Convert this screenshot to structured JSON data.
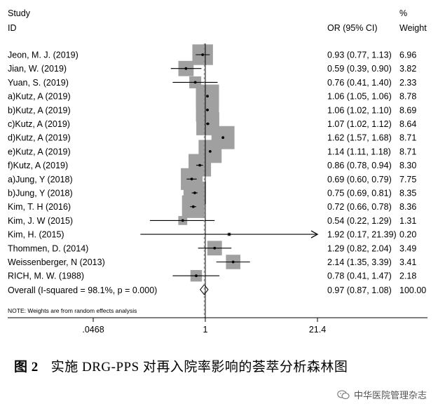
{
  "chart_data": {
    "type": "forest",
    "headers": {
      "study": "Study",
      "id": "ID",
      "ci": "OR (95% CI)",
      "weight_pct": "%",
      "weight": "Weight"
    },
    "x_scale": "log",
    "reference_value": 1,
    "x_ticks": [
      {
        "value": 0.0468,
        "label": ".0468"
      },
      {
        "value": 1,
        "label": "1"
      },
      {
        "value": 21.4,
        "label": "21.4"
      }
    ],
    "studies": [
      {
        "label": "Jeon, M. J. (2019)",
        "or": 0.93,
        "lo": 0.77,
        "hi": 1.13,
        "ci_text": "0.93 (0.77, 1.13)",
        "weight": 6.96,
        "weight_text": "6.96"
      },
      {
        "label": "Jian, W. (2019)",
        "or": 0.59,
        "lo": 0.39,
        "hi": 0.9,
        "ci_text": "0.59 (0.39, 0.90)",
        "weight": 3.82,
        "weight_text": "3.82"
      },
      {
        "label": "Yuan, S. (2019)",
        "or": 0.76,
        "lo": 0.41,
        "hi": 1.4,
        "ci_text": "0.76 (0.41, 1.40)",
        "weight": 2.33,
        "weight_text": "2.33"
      },
      {
        "label": "a)Kutz, A (2019)",
        "or": 1.06,
        "lo": 1.05,
        "hi": 1.06,
        "ci_text": "1.06 (1.05, 1.06)",
        "weight": 8.78,
        "weight_text": "8.78"
      },
      {
        "label": "b)Kutz, A (2019)",
        "or": 1.06,
        "lo": 1.02,
        "hi": 1.1,
        "ci_text": "1.06 (1.02, 1.10)",
        "weight": 8.69,
        "weight_text": "8.69"
      },
      {
        "label": "c)Kutz, A (2019)",
        "or": 1.07,
        "lo": 1.02,
        "hi": 1.12,
        "ci_text": "1.07 (1.02, 1.12)",
        "weight": 8.64,
        "weight_text": "8.64"
      },
      {
        "label": "d)Kutz, A (2019)",
        "or": 1.62,
        "lo": 1.57,
        "hi": 1.68,
        "ci_text": "1.62 (1.57, 1.68)",
        "weight": 8.71,
        "weight_text": "8.71"
      },
      {
        "label": "e)Kutz, A (2019)",
        "or": 1.14,
        "lo": 1.11,
        "hi": 1.18,
        "ci_text": "1.14 (1.11, 1.18)",
        "weight": 8.71,
        "weight_text": "8.71"
      },
      {
        "label": "f)Kutz, A (2019)",
        "or": 0.86,
        "lo": 0.78,
        "hi": 0.94,
        "ci_text": "0.86 (0.78, 0.94)",
        "weight": 8.3,
        "weight_text": "8.30"
      },
      {
        "label": "a)Jung, Y (2018)",
        "or": 0.69,
        "lo": 0.6,
        "hi": 0.79,
        "ci_text": "0.69 (0.60, 0.79)",
        "weight": 7.75,
        "weight_text": "7.75"
      },
      {
        "label": "b)Jung, Y (2018)",
        "or": 0.75,
        "lo": 0.69,
        "hi": 0.81,
        "ci_text": "0.75 (0.69, 0.81)",
        "weight": 8.35,
        "weight_text": "8.35"
      },
      {
        "label": "Kim, T. H (2016)",
        "or": 0.72,
        "lo": 0.66,
        "hi": 0.78,
        "ci_text": "0.72 (0.66, 0.78)",
        "weight": 8.36,
        "weight_text": "8.36"
      },
      {
        "label": "Kim, J. W (2015)",
        "or": 0.54,
        "lo": 0.22,
        "hi": 1.29,
        "ci_text": "0.54 (0.22, 1.29)",
        "weight": 1.31,
        "weight_text": "1.31"
      },
      {
        "label": "Kim, H. (2015)",
        "or": 1.92,
        "lo": 0.17,
        "hi": 21.39,
        "ci_text": "1.92 (0.17, 21.39)",
        "weight": 0.2,
        "weight_text": "0.20",
        "upper_arrow": true
      },
      {
        "label": "Thommen, D. (2014)",
        "or": 1.29,
        "lo": 0.82,
        "hi": 2.04,
        "ci_text": "1.29 (0.82, 2.04)",
        "weight": 3.49,
        "weight_text": "3.49"
      },
      {
        "label": "Weissenberger, N (2013)",
        "or": 2.14,
        "lo": 1.35,
        "hi": 3.39,
        "ci_text": "2.14 (1.35, 3.39)",
        "weight": 3.41,
        "weight_text": "3.41"
      },
      {
        "label": "RICH, M. W. (1988)",
        "or": 0.78,
        "lo": 0.41,
        "hi": 1.47,
        "ci_text": "0.78 (0.41, 1.47)",
        "weight": 2.18,
        "weight_text": "2.18"
      }
    ],
    "overall": {
      "label": "Overall  (I-squared = 98.1%, p = 0.000)",
      "or": 0.97,
      "lo": 0.87,
      "hi": 1.08,
      "ci_text": "0.97 (0.87, 1.08)",
      "weight_text": "100.00"
    },
    "note": "NOTE: Weights are from random effects analysis",
    "colors": {
      "box": "#a0a0a0",
      "line": "#000000",
      "overall_dash": "#8a8a8a"
    }
  },
  "caption": {
    "figure_number": "图 2",
    "text": "实施 DRG-PPS 对再入院率影响的荟萃分析森林图"
  },
  "watermark": {
    "text": "中华医院管理杂志",
    "icon": "wechat-icon"
  }
}
